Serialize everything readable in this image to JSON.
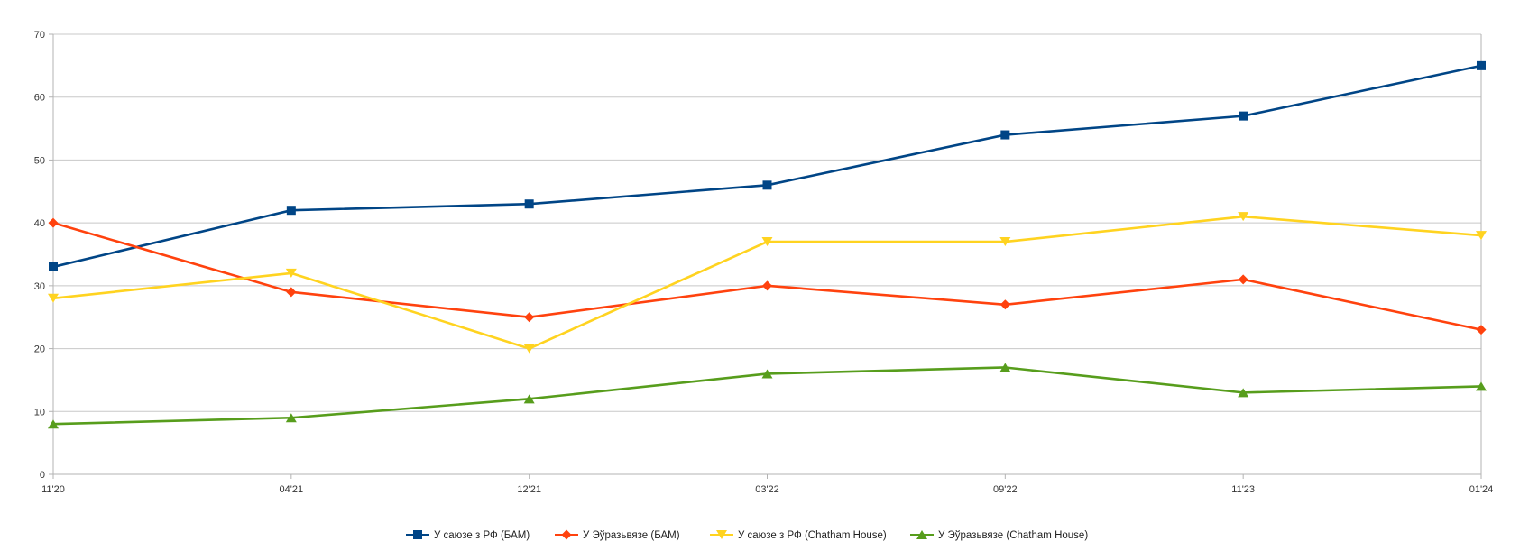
{
  "chart_data": {
    "type": "line",
    "title": "",
    "xlabel": "",
    "ylabel": "",
    "categories": [
      "11'20",
      "04'21",
      "12'21",
      "03'22",
      "09'22",
      "11'23",
      "01'24"
    ],
    "ylim": [
      0,
      70
    ],
    "yticks": [
      0,
      10,
      20,
      30,
      40,
      50,
      60,
      70
    ],
    "grid": true,
    "legend_position": "bottom",
    "series": [
      {
        "name": "У саюзе з РФ (БАМ)",
        "color": "#004586",
        "marker": "square",
        "values": [
          33,
          42,
          43,
          46,
          54,
          57,
          65
        ]
      },
      {
        "name": "У Эўразьвязе (БАМ)",
        "color": "#ff420e",
        "marker": "diamond",
        "values": [
          40,
          29,
          25,
          30,
          27,
          31,
          23
        ]
      },
      {
        "name": "У саюзе з РФ (Chatham House)",
        "color": "#ffd320",
        "marker": "triangle-down",
        "values": [
          28,
          32,
          20,
          37,
          37,
          41,
          38
        ]
      },
      {
        "name": "У Эўразьвязе (Chatham House)",
        "color": "#579d1c",
        "marker": "triangle-up",
        "values": [
          8,
          9,
          12,
          16,
          17,
          13,
          14
        ]
      }
    ]
  }
}
